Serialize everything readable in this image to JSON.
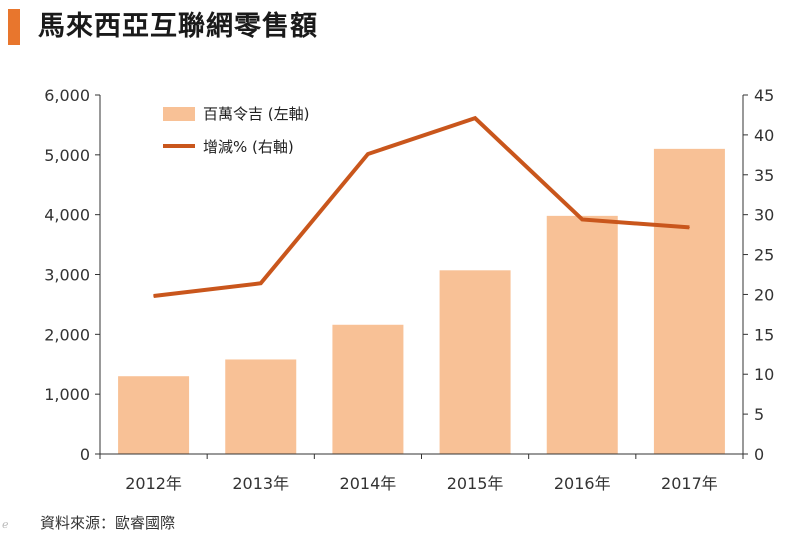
{
  "page": {
    "title": "馬來西亞互聯網零售額",
    "source": "資料來源：歐睿國際",
    "colors": {
      "accent": "#e8762d",
      "bar": "#f8c196",
      "line": "#c9561c",
      "axis": "#333333"
    }
  },
  "chart_data": {
    "type": "bar",
    "categories": [
      "2012年",
      "2013年",
      "2014年",
      "2015年",
      "2016年",
      "2017年"
    ],
    "series": [
      {
        "name": "百萬令吉 (左軸)",
        "type": "bar",
        "axis": "left",
        "values": [
          1300,
          1580,
          2160,
          3070,
          3980,
          5100
        ]
      },
      {
        "name": "增減% (右軸)",
        "type": "line",
        "axis": "right",
        "values": [
          19.8,
          21.4,
          37.6,
          42.1,
          29.4,
          28.4
        ]
      }
    ],
    "ylim_left": [
      0,
      6000
    ],
    "yticks_left": [
      "0",
      "1,000",
      "2,000",
      "3,000",
      "4,000",
      "5,000",
      "6,000"
    ],
    "ylim_right": [
      0,
      45
    ],
    "yticks_right": [
      "0",
      "5",
      "10",
      "15",
      "20",
      "25",
      "30",
      "35",
      "40",
      "45"
    ],
    "grid": false,
    "legend_position": "top-left"
  }
}
